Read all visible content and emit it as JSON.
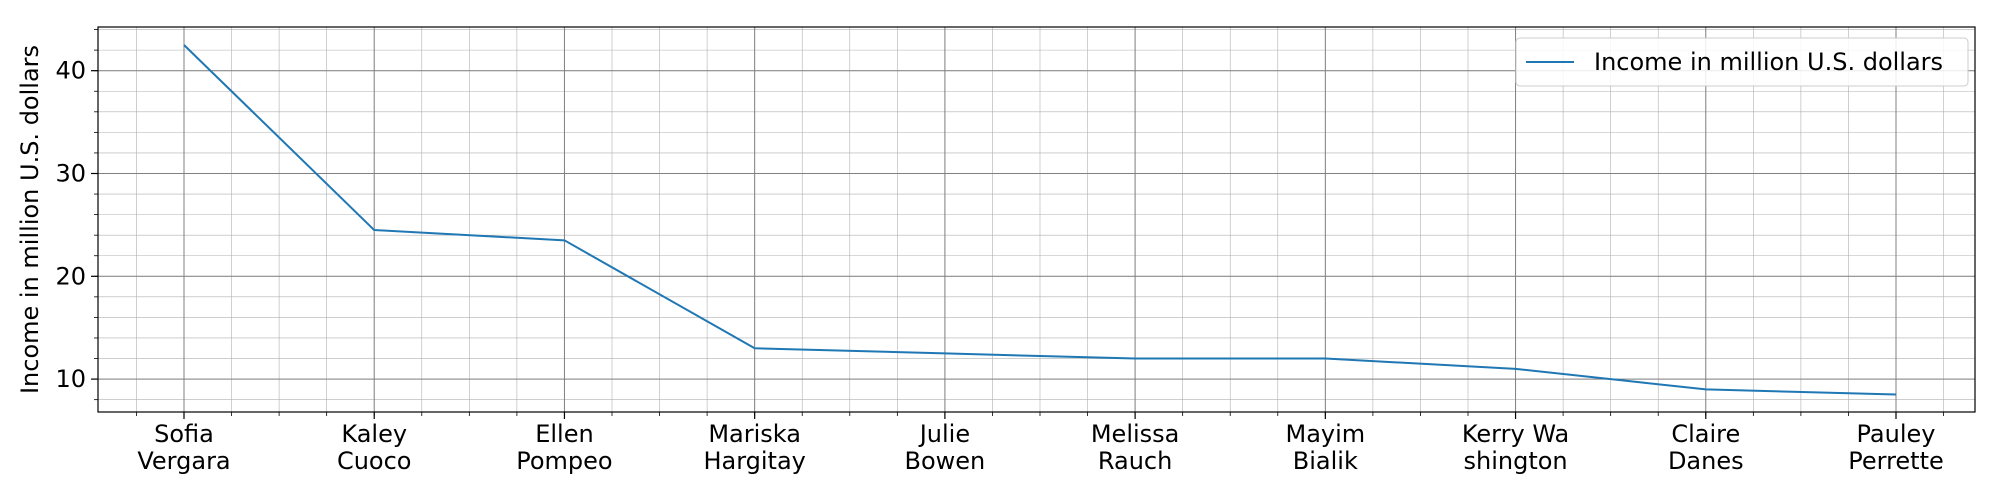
{
  "chart_data": {
    "type": "line",
    "categories": [
      [
        "Sofia",
        "Vergara"
      ],
      [
        "Kaley",
        "Cuoco"
      ],
      [
        "Ellen",
        "Pompeo"
      ],
      [
        "Mariska",
        "Hargitay"
      ],
      [
        "Julie",
        "Bowen"
      ],
      [
        "Melissa",
        "Rauch"
      ],
      [
        "Mayim",
        "Bialik"
      ],
      [
        "Kerry Wa",
        "shington"
      ],
      [
        "Claire",
        "Danes"
      ],
      [
        "Pauley",
        "Perrette"
      ]
    ],
    "series": [
      {
        "name": "Income in million U.S. dollars",
        "values": [
          42.5,
          24.5,
          23.5,
          13,
          12.5,
          12,
          12,
          11,
          9,
          8.5
        ],
        "color": "#1f77b4"
      }
    ],
    "ylabel": "Income in million U.S. dollars",
    "xlabel": "",
    "ylim": [
      6.8,
      44.25
    ],
    "yticks": [
      10,
      20,
      30,
      40
    ],
    "y_minor_step": 2,
    "grid": true,
    "legend_position": "top-right"
  }
}
